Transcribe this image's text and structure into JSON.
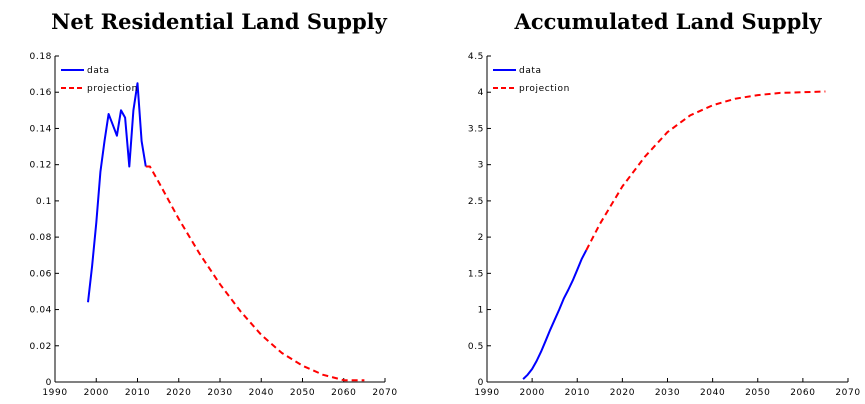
{
  "colors": {
    "data": "#0000ff",
    "projection": "#ff0000"
  },
  "chart_data": [
    {
      "type": "line",
      "title": "Net Residential Land Supply",
      "xlabel": "",
      "ylabel": "",
      "xlim": [
        1990,
        2070
      ],
      "ylim": [
        0,
        0.18
      ],
      "xticks": [
        1990,
        2000,
        2010,
        2020,
        2030,
        2040,
        2050,
        2060,
        2070
      ],
      "xtick_labels": [
        "1990",
        "2000",
        "2010",
        "2020",
        "2030",
        "2040",
        "2050",
        "2060",
        "2070"
      ],
      "yticks": [
        0,
        0.02,
        0.04,
        0.06,
        0.08,
        0.1,
        0.12,
        0.14,
        0.16,
        0.18
      ],
      "ytick_labels": [
        "0",
        "0.02",
        "0.04",
        "0.06",
        "0.08",
        "0.1",
        "0.12",
        "0.14",
        "0.16",
        "0.18"
      ],
      "legend_position": "top-left",
      "grid": false,
      "series": [
        {
          "name": "data",
          "style": "solid",
          "x": [
            1998,
            1999,
            2000,
            2001,
            2002,
            2003,
            2004,
            2005,
            2006,
            2007,
            2008,
            2009,
            2010,
            2011,
            2012
          ],
          "y": [
            0.044,
            0.064,
            0.088,
            0.116,
            0.133,
            0.148,
            0.142,
            0.136,
            0.15,
            0.146,
            0.119,
            0.15,
            0.165,
            0.133,
            0.119
          ]
        },
        {
          "name": "projection",
          "style": "dashed",
          "x": [
            2012,
            2013,
            2015,
            2020,
            2025,
            2030,
            2035,
            2040,
            2045,
            2050,
            2055,
            2060,
            2063,
            2065
          ],
          "y": [
            0.119,
            0.119,
            0.111,
            0.09,
            0.071,
            0.054,
            0.039,
            0.026,
            0.016,
            0.009,
            0.004,
            0.001,
            0.001,
            0.001
          ]
        }
      ]
    },
    {
      "type": "line",
      "title": "Accumulated Land Supply",
      "xlabel": "",
      "ylabel": "",
      "xlim": [
        1990,
        2070
      ],
      "ylim": [
        0,
        4.5
      ],
      "xticks": [
        1990,
        2000,
        2010,
        2020,
        2030,
        2040,
        2050,
        2060,
        2070
      ],
      "xtick_labels": [
        "1990",
        "2000",
        "2010",
        "2020",
        "2030",
        "2040",
        "2050",
        "2060",
        "2070"
      ],
      "yticks": [
        0,
        0.5,
        1,
        1.5,
        2,
        2.5,
        3,
        3.5,
        4,
        4.5
      ],
      "ytick_labels": [
        "0",
        "0.5",
        "1",
        "1.5",
        "2",
        "2.5",
        "3",
        "3.5",
        "4",
        "4.5"
      ],
      "legend_position": "top-left",
      "grid": false,
      "series": [
        {
          "name": "data",
          "style": "solid",
          "x": [
            1998,
            1999,
            2000,
            2001,
            2002,
            2003,
            2004,
            2005,
            2006,
            2007,
            2008,
            2009,
            2010,
            2011,
            2012
          ],
          "y": [
            0.04,
            0.1,
            0.18,
            0.29,
            0.42,
            0.57,
            0.72,
            0.86,
            1.0,
            1.15,
            1.27,
            1.4,
            1.55,
            1.7,
            1.82
          ]
        },
        {
          "name": "projection",
          "style": "dashed",
          "x": [
            2012,
            2015,
            2020,
            2025,
            2030,
            2035,
            2040,
            2045,
            2050,
            2055,
            2060,
            2065
          ],
          "y": [
            1.82,
            2.18,
            2.7,
            3.11,
            3.45,
            3.68,
            3.82,
            3.91,
            3.96,
            3.99,
            4.0,
            4.01
          ]
        }
      ]
    }
  ]
}
